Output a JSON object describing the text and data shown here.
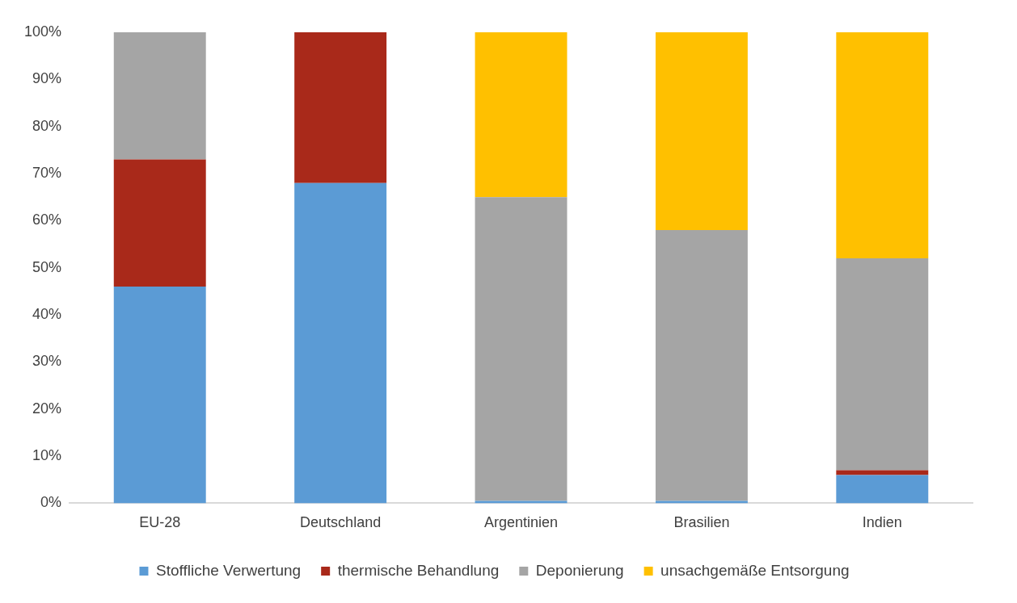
{
  "chart_data": {
    "type": "bar",
    "stacked": true,
    "categories": [
      "EU-28",
      "Deutschland",
      "Argentinien",
      "Brasilien",
      "Indien"
    ],
    "series": [
      {
        "name": "Stoffliche Verwertung",
        "color": "#5b9bd5",
        "values": [
          46,
          68,
          0.5,
          0.5,
          6
        ]
      },
      {
        "name": "thermische Behandlung",
        "color": "#a9291a",
        "values": [
          27,
          32,
          0,
          0,
          1
        ]
      },
      {
        "name": "Deponierung",
        "color": "#a5a5a5",
        "values": [
          27,
          0,
          64.5,
          57.5,
          45
        ]
      },
      {
        "name": "unsachgemäße Entsorgung",
        "color": "#ffc000",
        "values": [
          0,
          0,
          35,
          42,
          48
        ]
      }
    ],
    "ylim": [
      0,
      100
    ],
    "yticks": [
      {
        "value": 0,
        "label": "0%"
      },
      {
        "value": 10,
        "label": "10%"
      },
      {
        "value": 20,
        "label": "20%"
      },
      {
        "value": 30,
        "label": "30%"
      },
      {
        "value": 40,
        "label": "40%"
      },
      {
        "value": 50,
        "label": "50%"
      },
      {
        "value": 60,
        "label": "60%"
      },
      {
        "value": 70,
        "label": "70%"
      },
      {
        "value": 80,
        "label": "80%"
      },
      {
        "value": 90,
        "label": "90%"
      },
      {
        "value": 100,
        "label": "100%"
      }
    ],
    "grid": false,
    "legend": "bottom"
  }
}
